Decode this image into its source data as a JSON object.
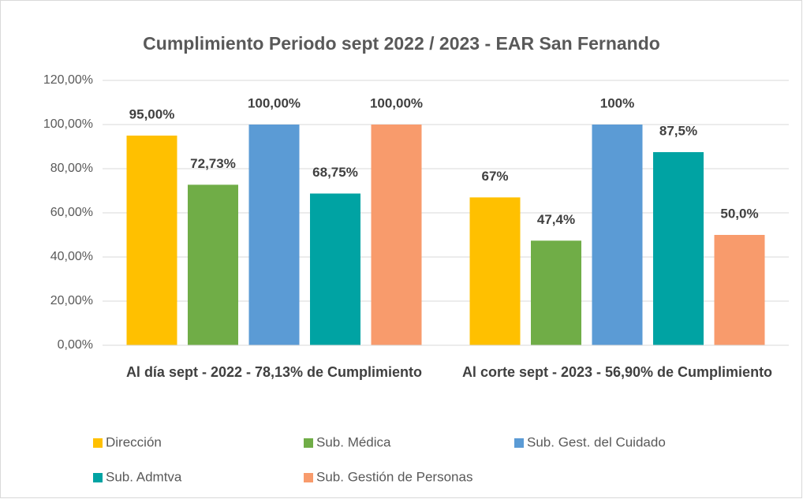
{
  "chart_data": {
    "type": "bar",
    "title": "Cumplimiento Periodo sept 2022 / 2023 - EAR San Fernando",
    "categories": [
      "Al día sept - 2022 -  78,13% de Cumplimiento",
      "Al corte sept - 2023 -  56,90% de Cumplimiento"
    ],
    "series": [
      {
        "name": "Dirección",
        "color": "#FFC000",
        "values": [
          95,
          67
        ],
        "value_labels": [
          "95,00%",
          "67%"
        ]
      },
      {
        "name": "Sub. Médica",
        "color": "#70AD47",
        "values": [
          72.73,
          47.4
        ],
        "value_labels": [
          "72,73%",
          "47,4%"
        ]
      },
      {
        "name": "Sub. Gest. del Cuidado",
        "color": "#5B9BD5",
        "values": [
          100,
          100
        ],
        "value_labels": [
          "100,00%",
          "100%"
        ]
      },
      {
        "name": "Sub. Admtva",
        "color": "#00A3A3",
        "values": [
          68.75,
          87.5
        ],
        "value_labels": [
          "68,75%",
          "87,5%"
        ]
      },
      {
        "name": "Sub. Gestión de Personas",
        "color": "#F89B6C",
        "values": [
          100,
          50
        ],
        "value_labels": [
          "100,00%",
          "50,0%"
        ]
      }
    ],
    "ylim": [
      0,
      120
    ],
    "yticks": [
      {
        "value": 0,
        "label": "0,00%"
      },
      {
        "value": 20,
        "label": "20,00%"
      },
      {
        "value": 40,
        "label": "40,00%"
      },
      {
        "value": 60,
        "label": "60,00%"
      },
      {
        "value": 80,
        "label": "80,00%"
      },
      {
        "value": 100,
        "label": "100,00%"
      },
      {
        "value": 120,
        "label": "120,00%"
      }
    ],
    "grid": true,
    "legend": "bottom"
  }
}
